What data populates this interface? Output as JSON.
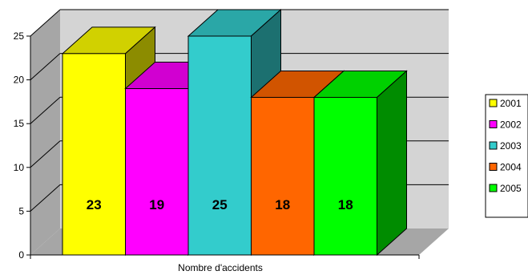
{
  "chart_data": {
    "type": "bar",
    "title": "",
    "xlabel": "Nombre d'accidents",
    "ylabel": "",
    "categories": [
      "Nombre d'accidents"
    ],
    "series": [
      {
        "name": "2001",
        "values": [
          23
        ],
        "color": "#FFFF00"
      },
      {
        "name": "2002",
        "values": [
          19
        ],
        "color": "#FF00FF"
      },
      {
        "name": "2003",
        "values": [
          25
        ],
        "color": "#33CCCC"
      },
      {
        "name": "2004",
        "values": [
          18
        ],
        "color": "#FF6600"
      },
      {
        "name": "2005",
        "values": [
          18
        ],
        "color": "#00FF00"
      }
    ],
    "ylim": [
      0,
      25
    ],
    "yticks": [
      "0",
      "5",
      "10",
      "15",
      "20",
      "25"
    ],
    "grid": true,
    "legend_position": "right",
    "style": "3d-column"
  }
}
